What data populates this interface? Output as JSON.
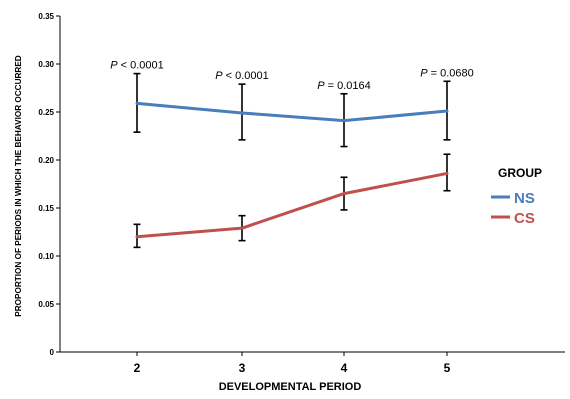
{
  "chart_data": {
    "type": "line",
    "title": "",
    "xlabel": "DEVELOPMENTAL PERIOD",
    "ylabel": "PROPORTION OF PERIODS IN WHICH THE BEHAVIOR OCCURRED",
    "categories": [
      "2",
      "3",
      "4",
      "5"
    ],
    "ylim": [
      0,
      0.35
    ],
    "yticks": [
      "0",
      "0.05",
      "0.10",
      "0.15",
      "0.20",
      "0.25",
      "0.30",
      "0.35"
    ],
    "grid": false,
    "legend": {
      "title": "GROUP",
      "position": "right"
    },
    "series": [
      {
        "name": "NS",
        "color": "#4a7ebb",
        "values": [
          0.259,
          0.249,
          0.241,
          0.251
        ],
        "err_low": [
          0.229,
          0.221,
          0.214,
          0.221
        ],
        "err_high": [
          0.29,
          0.279,
          0.269,
          0.282
        ]
      },
      {
        "name": "CS",
        "color": "#c0504d",
        "values": [
          0.12,
          0.129,
          0.165,
          0.186
        ],
        "err_low": [
          0.109,
          0.116,
          0.148,
          0.168
        ],
        "err_high": [
          0.133,
          0.142,
          0.182,
          0.206
        ]
      }
    ],
    "annotations": [
      {
        "prefix": "P",
        "text": " < 0.0001"
      },
      {
        "prefix": "P",
        "text": " < 0.0001"
      },
      {
        "prefix": "P",
        "text": " = 0.0164"
      },
      {
        "prefix": "P",
        "text": " = 0.0680"
      }
    ]
  }
}
